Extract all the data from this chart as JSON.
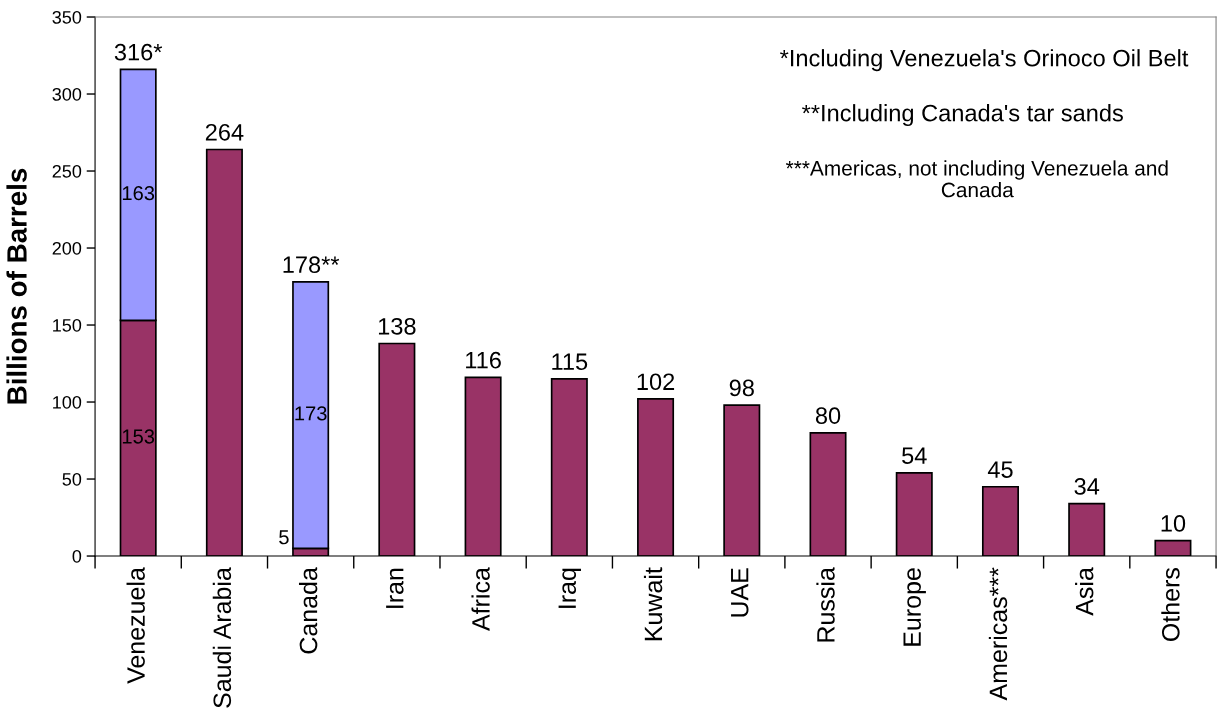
{
  "chart_data": {
    "type": "bar",
    "stacked": true,
    "ylabel": "Billions of Barrels",
    "categories": [
      "Venezuela",
      "Saudi Arabia",
      "Canada",
      "Iran",
      "Africa",
      "Iraq",
      "Kuwait",
      "UAE",
      "Russia",
      "Europe",
      "Americas***",
      "Asia",
      "Others"
    ],
    "series": [
      {
        "color": "#993366",
        "values": [
          153,
          264,
          5,
          138,
          116,
          115,
          102,
          98,
          80,
          54,
          45,
          34,
          10
        ],
        "value_labels": [
          "153",
          null,
          "5",
          null,
          null,
          null,
          null,
          null,
          null,
          null,
          null,
          null,
          null
        ]
      },
      {
        "color": "#9999ff",
        "values": [
          163,
          null,
          173,
          null,
          null,
          null,
          null,
          null,
          null,
          null,
          null,
          null,
          null
        ],
        "value_labels": [
          "163",
          null,
          "173",
          null,
          null,
          null,
          null,
          null,
          null,
          null,
          null,
          null,
          null
        ]
      }
    ],
    "totals": [
      "316*",
      "264",
      "178**",
      "138",
      "116",
      "115",
      "102",
      "98",
      "80",
      "54",
      "45",
      "34",
      "10"
    ],
    "ylim": [
      0,
      350
    ],
    "yticks": [
      0,
      50,
      100,
      150,
      200,
      250,
      300,
      350
    ],
    "annotations": [
      "*Including Venezuela's Orinoco Oil Belt",
      "**Including Canada's tar sands",
      "***Americas, not including Venezuela and\nCanada"
    ]
  }
}
